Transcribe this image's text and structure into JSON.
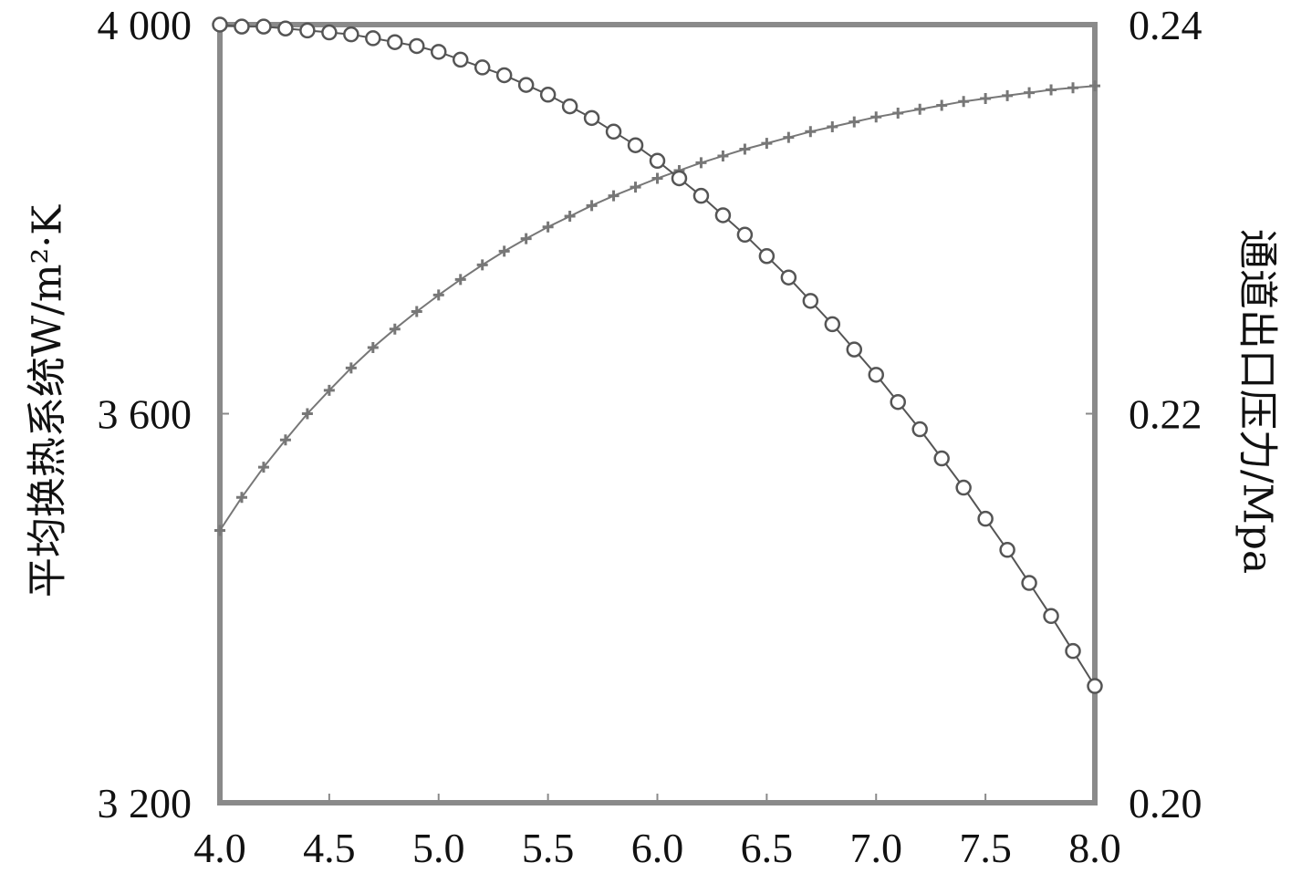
{
  "chart_data": {
    "type": "line",
    "x": {
      "range": [
        4.0,
        8.0
      ],
      "ticks": [
        "4.0",
        "4.5",
        "5.0",
        "5.5",
        "6.0",
        "6.5",
        "7.0",
        "7.5",
        "8.0"
      ],
      "label": ""
    },
    "y_left": {
      "range": [
        3200,
        4000
      ],
      "ticks": [
        "4 000",
        "3 600",
        "3 200"
      ],
      "label": "平均换热系统W/m²·K"
    },
    "y_right": {
      "range": [
        0.2,
        0.24
      ],
      "ticks": [
        "0.24",
        "0.22",
        "0.20"
      ],
      "label": "通道出口压力/Mpa"
    },
    "grid": false,
    "legend": "none",
    "series": [
      {
        "axis": "left",
        "marker": "plus",
        "color": "#777777",
        "x": [
          4.0,
          4.1,
          4.2,
          4.3,
          4.4,
          4.5,
          4.6,
          4.7,
          4.8,
          4.9,
          5.0,
          5.1,
          5.2,
          5.3,
          5.4,
          5.5,
          5.6,
          5.7,
          5.8,
          5.9,
          6.0,
          6.1,
          6.2,
          6.3,
          6.4,
          6.5,
          6.6,
          6.7,
          6.8,
          6.9,
          7.0,
          7.1,
          7.2,
          7.3,
          7.4,
          7.5,
          7.6,
          7.7,
          7.8,
          7.9,
          8.0
        ],
        "values": [
          3480,
          3514,
          3545,
          3573,
          3600,
          3624,
          3647,
          3668,
          3687,
          3705,
          3722,
          3738,
          3753,
          3767,
          3780,
          3792,
          3803,
          3814,
          3824,
          3833,
          3842,
          3850,
          3858,
          3865,
          3872,
          3878,
          3884,
          3890,
          3895,
          3900,
          3905,
          3909,
          3913,
          3917,
          3921,
          3924,
          3927,
          3930,
          3933,
          3935,
          3937
        ]
      },
      {
        "axis": "right",
        "marker": "circle",
        "color": "#555555",
        "x": [
          4.0,
          4.1,
          4.2,
          4.3,
          4.4,
          4.5,
          4.6,
          4.7,
          4.8,
          4.9,
          5.0,
          5.1,
          5.2,
          5.3,
          5.4,
          5.5,
          5.6,
          5.7,
          5.8,
          5.9,
          6.0,
          6.1,
          6.2,
          6.3,
          6.4,
          6.5,
          6.6,
          6.7,
          6.8,
          6.9,
          7.0,
          7.1,
          7.2,
          7.3,
          7.4,
          7.5,
          7.6,
          7.7,
          7.8,
          7.9,
          8.0
        ],
        "values": [
          0.24,
          0.2399,
          0.2399,
          0.2398,
          0.2397,
          0.2396,
          0.2395,
          0.2393,
          0.2391,
          0.2389,
          0.2386,
          0.2382,
          0.2378,
          0.2374,
          0.2369,
          0.2364,
          0.2358,
          0.2352,
          0.2345,
          0.2338,
          0.233,
          0.2321,
          0.2312,
          0.2302,
          0.2292,
          0.2281,
          0.227,
          0.2258,
          0.2246,
          0.2233,
          0.222,
          0.2206,
          0.2192,
          0.2177,
          0.2162,
          0.2146,
          0.213,
          0.2113,
          0.2096,
          0.2078,
          0.206
        ]
      }
    ]
  }
}
